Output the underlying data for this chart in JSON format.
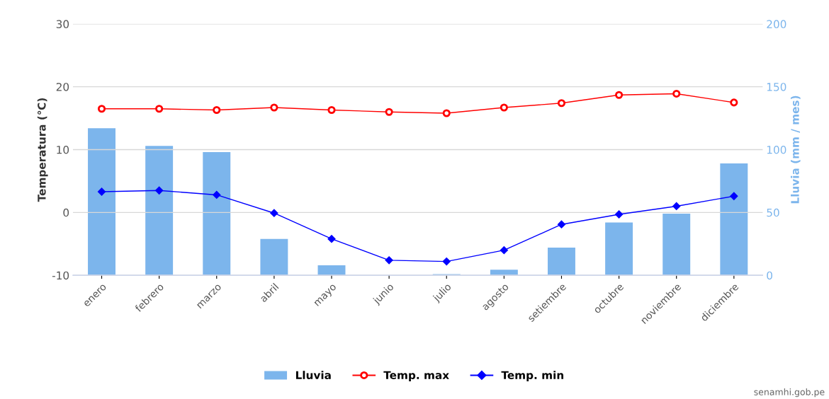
{
  "chart_data": {
    "type": "bar",
    "categories": [
      "enero",
      "febrero",
      "marzo",
      "abril",
      "mayo",
      "junio",
      "julio",
      "agosto",
      "setiembre",
      "octubre",
      "noviembre",
      "diciembre"
    ],
    "series": [
      {
        "name": "Lluvia",
        "axis": "y2",
        "color": "#7cb5ec",
        "values": [
          117,
          103,
          98,
          29,
          8,
          0,
          1,
          4.5,
          22,
          42,
          49,
          89
        ]
      },
      {
        "name": "Temp. max",
        "type": "line",
        "color": "#ff0000",
        "marker": "circle",
        "values": [
          16.5,
          16.5,
          16.3,
          16.7,
          16.3,
          16.0,
          15.8,
          16.7,
          17.4,
          18.7,
          18.9,
          17.5
        ]
      },
      {
        "name": "Temp. min",
        "type": "line",
        "color": "#0000ff",
        "marker": "diamond",
        "values": [
          3.3,
          3.5,
          2.8,
          -0.1,
          -4.2,
          -7.6,
          -7.8,
          -6.0,
          -1.9,
          -0.3,
          1.0,
          2.6
        ]
      }
    ],
    "ylabel": "Temperatura (℃)",
    "y2label": "Lluvia (mm / mes)",
    "ylim": [
      -10,
      30
    ],
    "yticks": [
      -10,
      0,
      10,
      20,
      30
    ],
    "y2lim": [
      0,
      200
    ],
    "y2ticks": [
      0,
      50,
      100,
      150,
      200
    ],
    "grid": "y",
    "legend": "bottom",
    "annotations": [
      "senamhi.gob.pe"
    ]
  }
}
